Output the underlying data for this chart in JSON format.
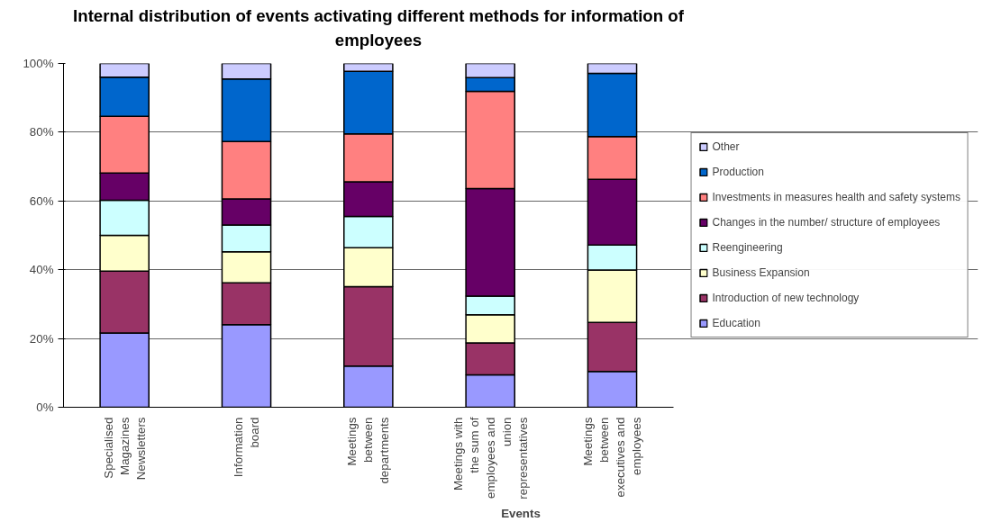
{
  "chart_data": {
    "type": "bar",
    "stacked": true,
    "title": "Internal distribution of events activating different methods for information of employees",
    "xlabel": "Events",
    "categories": [
      "Specialised Magazines Newsletters",
      "Information board",
      "Meetings between departments",
      "Meetings with the sum of employees and union representatives",
      "Meetings between executives and employees"
    ],
    "series": [
      {
        "name": "Education",
        "color": "#9999ff",
        "values": [
          21.6,
          24.0,
          12.0,
          9.4,
          10.4
        ]
      },
      {
        "name": "Introduction of new technology",
        "color": "#993366",
        "values": [
          18.0,
          12.2,
          23.1,
          9.3,
          14.3
        ]
      },
      {
        "name": "Business Expansion",
        "color": "#ffffcc",
        "values": [
          10.4,
          9.0,
          11.3,
          8.2,
          15.2
        ]
      },
      {
        "name": "Reengineering",
        "color": "#ccffff",
        "values": [
          10.2,
          7.8,
          9.1,
          5.4,
          7.3
        ]
      },
      {
        "name": "Changes in the number/ structure of employees",
        "color": "#660066",
        "values": [
          7.9,
          7.6,
          10.1,
          31.3,
          19.1
        ]
      },
      {
        "name": "Investments in measures health and safety systems",
        "color": "#ff8080",
        "values": [
          16.5,
          16.7,
          13.9,
          28.3,
          12.4
        ]
      },
      {
        "name": "Production",
        "color": "#0066cc",
        "values": [
          11.4,
          18.2,
          18.2,
          4.0,
          18.4
        ]
      },
      {
        "name": "Other",
        "color": "#ccccff",
        "values": [
          4.0,
          4.5,
          2.3,
          4.1,
          2.9
        ]
      }
    ],
    "ylim": [
      0,
      100
    ],
    "yticks": [
      {
        "value": 0,
        "label": "0%"
      },
      {
        "value": 20,
        "label": "20%"
      },
      {
        "value": 40,
        "label": "40%"
      },
      {
        "value": 60,
        "label": "60%"
      },
      {
        "value": 80,
        "label": "80%"
      },
      {
        "value": 100,
        "label": "100%"
      }
    ],
    "grid": "y",
    "legend": "right"
  }
}
